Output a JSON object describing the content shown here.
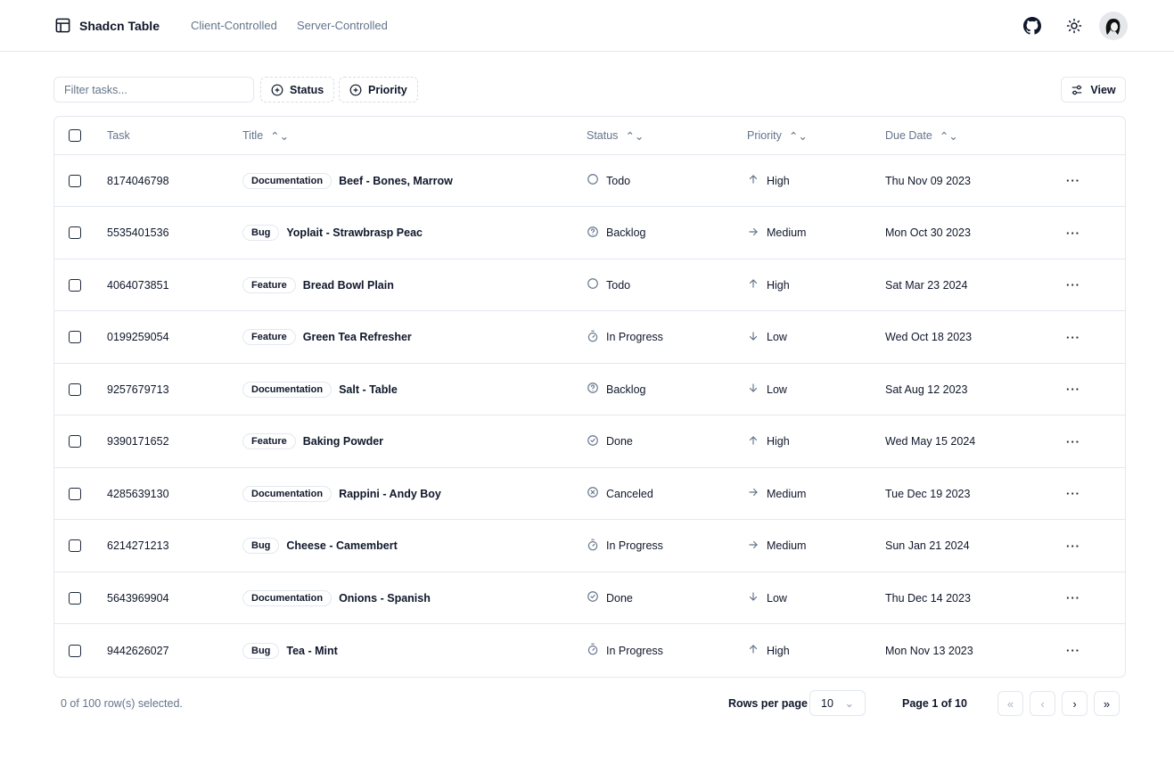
{
  "header": {
    "app_title": "Shadcn Table",
    "nav": [
      "Client-Controlled",
      "Server-Controlled"
    ]
  },
  "toolbar": {
    "filter_placeholder": "Filter tasks...",
    "filter_value": "",
    "status_label": "Status",
    "priority_label": "Priority",
    "view_label": "View"
  },
  "table": {
    "columns": [
      "Task",
      "Title",
      "Status",
      "Priority",
      "Due Date"
    ],
    "rows": [
      {
        "task": "8174046798",
        "label": "Documentation",
        "title": "Beef - Bones, Marrow",
        "status": "Todo",
        "priority": "High",
        "due": "Thu Nov 09 2023"
      },
      {
        "task": "5535401536",
        "label": "Bug",
        "title": "Yoplait - Strawbrasp Peac",
        "status": "Backlog",
        "priority": "Medium",
        "due": "Mon Oct 30 2023"
      },
      {
        "task": "4064073851",
        "label": "Feature",
        "title": "Bread Bowl Plain",
        "status": "Todo",
        "priority": "High",
        "due": "Sat Mar 23 2024"
      },
      {
        "task": "0199259054",
        "label": "Feature",
        "title": "Green Tea Refresher",
        "status": "In Progress",
        "priority": "Low",
        "due": "Wed Oct 18 2023"
      },
      {
        "task": "9257679713",
        "label": "Documentation",
        "title": "Salt - Table",
        "status": "Backlog",
        "priority": "Low",
        "due": "Sat Aug 12 2023"
      },
      {
        "task": "9390171652",
        "label": "Feature",
        "title": "Baking Powder",
        "status": "Done",
        "priority": "High",
        "due": "Wed May 15 2024"
      },
      {
        "task": "4285639130",
        "label": "Documentation",
        "title": "Rappini - Andy Boy",
        "status": "Canceled",
        "priority": "Medium",
        "due": "Tue Dec 19 2023"
      },
      {
        "task": "6214271213",
        "label": "Bug",
        "title": "Cheese - Camembert",
        "status": "In Progress",
        "priority": "Medium",
        "due": "Sun Jan 21 2024"
      },
      {
        "task": "5643969904",
        "label": "Documentation",
        "title": "Onions - Spanish",
        "status": "Done",
        "priority": "Low",
        "due": "Thu Dec 14 2023"
      },
      {
        "task": "9442626027",
        "label": "Bug",
        "title": "Tea - Mint",
        "status": "In Progress",
        "priority": "High",
        "due": "Mon Nov 13 2023"
      }
    ]
  },
  "footer": {
    "selected": "0 of 100 row(s) selected.",
    "rows_per_page_label": "Rows per page",
    "rows_per_page": "10",
    "page": "Page 1 of 10"
  }
}
